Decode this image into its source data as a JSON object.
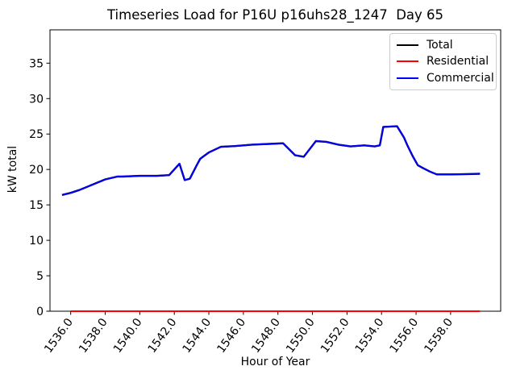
{
  "figure": {
    "title": "Timeseries Load for P16U p16uhs28_1247  Day 65",
    "xlabel": "Hour of Year",
    "ylabel": "kW total"
  },
  "legend": {
    "items": [
      {
        "label": "Total",
        "color": "#000000"
      },
      {
        "label": "Residential",
        "color": "#ff0000"
      },
      {
        "label": "Commercial",
        "color": "#0000ff"
      }
    ]
  },
  "chart_data": {
    "type": "line",
    "title": "Timeseries Load for P16U p16uhs28_1247  Day 65",
    "xlabel": "Hour of Year",
    "ylabel": "kW total",
    "grid": false,
    "legend_position": "upper right",
    "xlim": [
      1534.8,
      1560.9
    ],
    "ylim": [
      0,
      39.7
    ],
    "xticks": {
      "values": [
        1536,
        1538,
        1540,
        1542,
        1544,
        1546,
        1548,
        1550,
        1552,
        1554,
        1556,
        1558
      ],
      "labels": [
        "1536.0",
        "1538.0",
        "1540.0",
        "1542.0",
        "1544.0",
        "1546.0",
        "1548.0",
        "1550.0",
        "1552.0",
        "1554.0",
        "1556.0",
        "1558.0"
      ]
    },
    "yticks": {
      "values": [
        0,
        5,
        10,
        15,
        20,
        25,
        30,
        35
      ],
      "labels": [
        "0",
        "5",
        "10",
        "15",
        "20",
        "25",
        "30",
        "35"
      ]
    },
    "series": [
      {
        "name": "Total",
        "color": "#000000",
        "width": 2.4,
        "x": [
          1535.5,
          1536,
          1536.5,
          1537,
          1537.5,
          1538,
          1538.7,
          1539,
          1540,
          1541,
          1541.7,
          1542.3,
          1542.6,
          1542.9,
          1543.3,
          1543.5,
          1544,
          1544.7,
          1545.5,
          1546.5,
          1547.5,
          1548.3,
          1549,
          1549.5,
          1550.2,
          1550.8,
          1551.5,
          1552.2,
          1553,
          1553.6,
          1553.9,
          1554.1,
          1554.9,
          1555.3,
          1555.5,
          1555.8,
          1556.1,
          1556.4,
          1556.8,
          1557.2,
          1558,
          1559,
          1559.7
        ],
        "y": [
          16.4,
          16.7,
          17.1,
          17.6,
          18.1,
          18.6,
          19.0,
          19.0,
          19.1,
          19.1,
          19.2,
          20.8,
          18.5,
          18.7,
          20.6,
          21.5,
          22.4,
          23.2,
          23.3,
          23.5,
          23.6,
          23.7,
          22.0,
          21.8,
          24.0,
          23.9,
          23.5,
          23.25,
          23.4,
          23.25,
          23.4,
          26.0,
          26.1,
          24.5,
          23.4,
          21.9,
          20.6,
          20.2,
          19.7,
          19.3,
          19.3,
          19.35,
          19.4
        ]
      },
      {
        "name": "Residential",
        "color": "#ff0000",
        "width": 2,
        "x": [
          1536,
          1559.7
        ],
        "y": [
          0,
          0
        ]
      },
      {
        "name": "Commercial",
        "color": "#0000ff",
        "width": 2,
        "x": [
          1535.5,
          1536,
          1536.5,
          1537,
          1537.5,
          1538,
          1538.7,
          1539,
          1540,
          1541,
          1541.7,
          1542.3,
          1542.6,
          1542.9,
          1543.3,
          1543.5,
          1544,
          1544.7,
          1545.5,
          1546.5,
          1547.5,
          1548.3,
          1549,
          1549.5,
          1550.2,
          1550.8,
          1551.5,
          1552.2,
          1553,
          1553.6,
          1553.9,
          1554.1,
          1554.9,
          1555.3,
          1555.5,
          1555.8,
          1556.1,
          1556.4,
          1556.8,
          1557.2,
          1558,
          1559,
          1559.7
        ],
        "y": [
          16.4,
          16.7,
          17.1,
          17.6,
          18.1,
          18.6,
          19.0,
          19.0,
          19.1,
          19.1,
          19.2,
          20.8,
          18.5,
          18.7,
          20.6,
          21.5,
          22.4,
          23.2,
          23.3,
          23.5,
          23.6,
          23.7,
          22.0,
          21.8,
          24.0,
          23.9,
          23.5,
          23.25,
          23.4,
          23.25,
          23.4,
          26.0,
          26.1,
          24.5,
          23.4,
          21.9,
          20.6,
          20.2,
          19.7,
          19.3,
          19.3,
          19.35,
          19.4
        ]
      }
    ]
  }
}
